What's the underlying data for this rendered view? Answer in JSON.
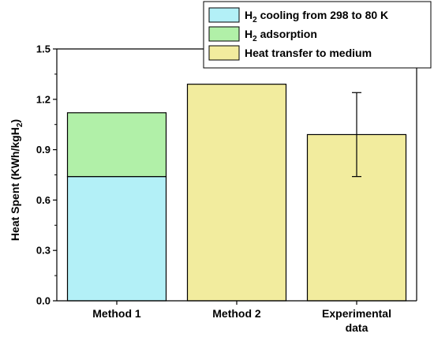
{
  "chart_data": {
    "type": "bar",
    "stacked": true,
    "ylabel": "Heat Spent (KWh/kgH",
    "ylabel_sub": "2",
    "ylabel_tail": ")",
    "ylim": [
      0,
      1.5
    ],
    "yticks": [
      "0.0",
      "0.3",
      "0.6",
      "0.9",
      "1.2",
      "1.5"
    ],
    "ytick_values": [
      0,
      0.3,
      0.6,
      0.9,
      1.2,
      1.5
    ],
    "categories": [
      [
        "Method 1"
      ],
      [
        "Method 2"
      ],
      [
        "Experimental",
        "data"
      ]
    ],
    "series": [
      {
        "name": "H2 cooling from 298 to 80 K",
        "name_parts": [
          "H",
          "2",
          " cooling from 298 to 80 K"
        ],
        "color": "#b3f0f7",
        "values": [
          0.74,
          0,
          0
        ]
      },
      {
        "name": "H2 adsorption",
        "name_parts": [
          "H",
          "2",
          " adsorption"
        ],
        "color": "#b1f0a8",
        "values": [
          0.38,
          0,
          0
        ]
      },
      {
        "name": "Heat transfer to medium",
        "name_parts": [
          "Heat transfer to medium",
          "",
          ""
        ],
        "color": "#f2ec9e",
        "values": [
          0,
          1.29,
          0.99
        ]
      }
    ],
    "error_bars": [
      null,
      null,
      {
        "low": 0.74,
        "high": 1.24
      }
    ],
    "legend_position": "top-right",
    "grid": false
  }
}
